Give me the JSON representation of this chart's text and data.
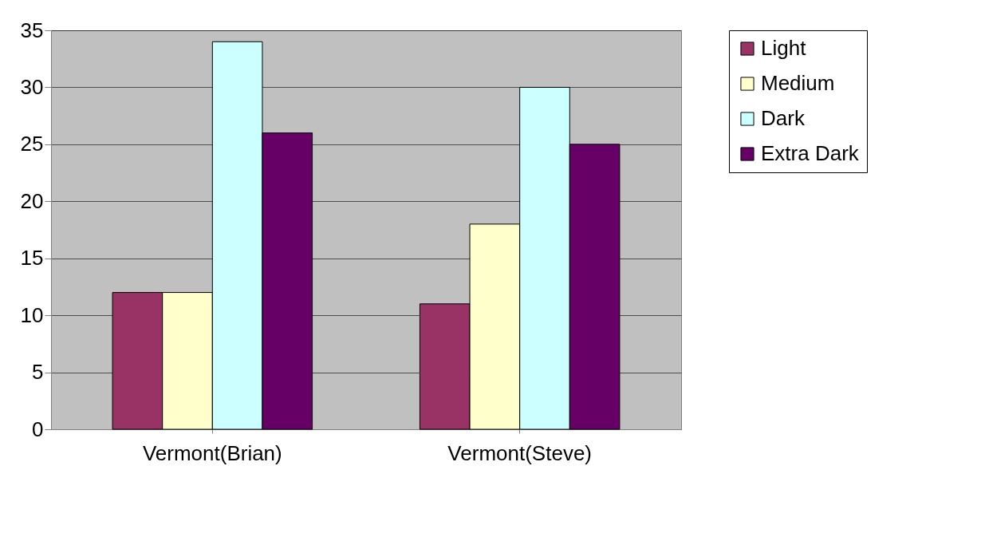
{
  "chart_data": {
    "type": "bar",
    "categories": [
      "Vermont(Brian)",
      "Vermont(Steve)"
    ],
    "series": [
      {
        "name": "Light",
        "color": "#993366",
        "values": [
          12,
          11
        ]
      },
      {
        "name": "Medium",
        "color": "#ffffcc",
        "values": [
          12,
          18
        ]
      },
      {
        "name": "Dark",
        "color": "#ccffff",
        "values": [
          34,
          30
        ]
      },
      {
        "name": "Extra Dark",
        "color": "#660066",
        "values": [
          26,
          25
        ]
      }
    ],
    "ylim": [
      0,
      35
    ],
    "yticks": [
      0,
      5,
      10,
      15,
      20,
      25,
      30,
      35
    ],
    "grid": "y",
    "legend": "right"
  }
}
